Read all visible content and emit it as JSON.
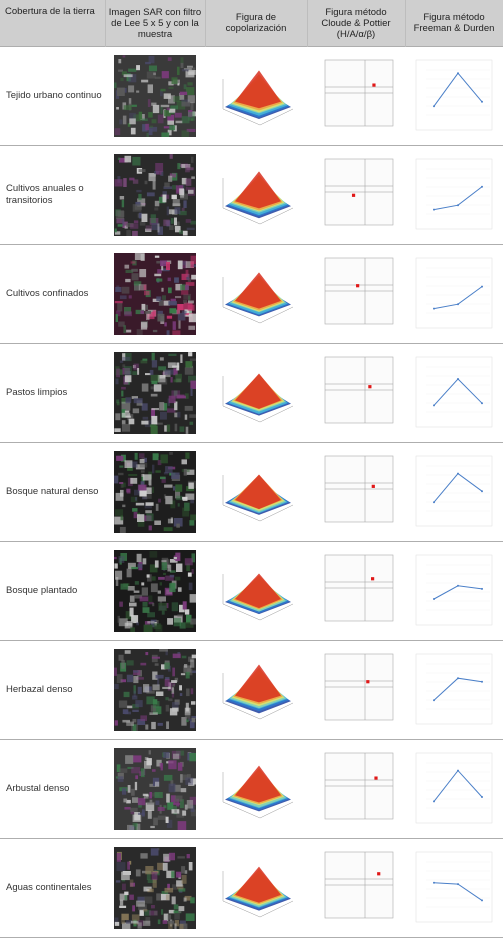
{
  "header": {
    "col1": "Cobertura de la tierra",
    "col2": "Imagen SAR con filtro de Lee 5 x 5 y con la muestra",
    "col3": "Figura de copolarización",
    "col4": "Figura método Cloude & Pottier (H/A/α/β)",
    "col5": "Figura método Freeman & Durden"
  },
  "rows": [
    {
      "label": "Tejido urbano continuo",
      "sar": {
        "base": "#3a3a3a",
        "tint": "#3a6a3a"
      },
      "cp": {
        "pt": [
          0.72,
          0.38
        ]
      },
      "fd": [
        0.2,
        0.95,
        0.3
      ]
    },
    {
      "label": "Cultivos anuales o transitorios",
      "sar": {
        "base": "#2a2a2a",
        "tint": "#7a4a7a"
      },
      "cp": {
        "pt": [
          0.42,
          0.55
        ]
      },
      "fd": [
        0.1,
        0.2,
        0.62
      ]
    },
    {
      "label": "Cultivos confinados",
      "sar": {
        "base": "#3a1a2a",
        "tint": "#c8366e"
      },
      "cp": {
        "pt": [
          0.48,
          0.42
        ]
      },
      "fd": [
        0.1,
        0.2,
        0.6
      ]
    },
    {
      "label": "Pastos limpios",
      "sar": {
        "base": "#262626",
        "tint": "#3a6a3a"
      },
      "cp": {
        "pt": [
          0.66,
          0.45
        ]
      },
      "fd": [
        0.15,
        0.75,
        0.2
      ]
    },
    {
      "label": "Bosque natural denso",
      "sar": {
        "base": "#1e1e1e",
        "tint": "#2f5a2f"
      },
      "cp": {
        "pt": [
          0.71,
          0.46
        ]
      },
      "fd": [
        0.2,
        0.85,
        0.45
      ]
    },
    {
      "label": "Bosque plantado",
      "sar": {
        "base": "#1a1a1a",
        "tint": "#2a4a2a"
      },
      "cp": {
        "pt": [
          0.7,
          0.36
        ]
      },
      "fd": [
        0.25,
        0.55,
        0.48
      ]
    },
    {
      "label": "Herbazal denso",
      "sar": {
        "base": "#2a2a2a",
        "tint": "#6a6a6a"
      },
      "cp": {
        "pt": [
          0.63,
          0.42
        ]
      },
      "fd": [
        0.2,
        0.7,
        0.62
      ]
    },
    {
      "label": "Arbustal denso",
      "sar": {
        "base": "#3a3a3a",
        "tint": "#9a9a9a"
      },
      "cp": {
        "pt": [
          0.75,
          0.38
        ]
      },
      "fd": [
        0.15,
        0.85,
        0.25
      ]
    },
    {
      "label": "Aguas continentales",
      "sar": {
        "base": "#2a2a2a",
        "tint": "#8a7a5a"
      },
      "cp": {
        "pt": [
          0.79,
          0.33
        ]
      },
      "fd": [
        0.55,
        0.52,
        0.15
      ]
    }
  ]
}
